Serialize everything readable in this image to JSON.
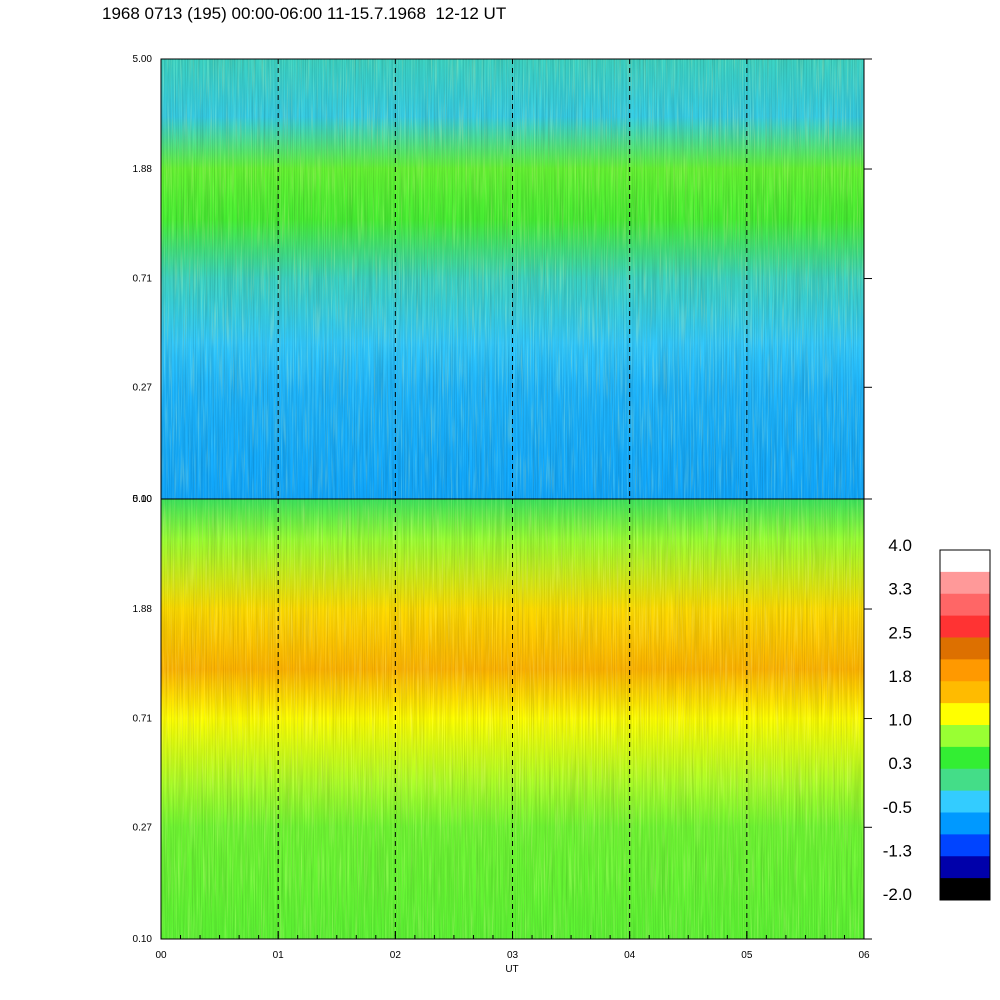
{
  "title": "1968 0713 (195) 00:00-06:00 11-15.7.1968  12-12 UT",
  "chart_data": [
    {
      "type": "heatmap",
      "panel": "upper",
      "x_ticks": [
        "00",
        "01",
        "02",
        "03",
        "04",
        "05",
        "06"
      ],
      "x_range": [
        0,
        6
      ],
      "y_ticks": [
        "0.10",
        "0.27",
        "0.71",
        "1.88",
        "5.00"
      ],
      "y_range": [
        0.1,
        5.0
      ],
      "y_scale": "log",
      "dashed_hour_lines": [
        1,
        2,
        3,
        4,
        5
      ],
      "colormap_level_profile": [
        {
          "y": 5.0,
          "level": 4.5
        },
        {
          "y": 3.0,
          "level": 4.2
        },
        {
          "y": 1.88,
          "level": 6.5
        },
        {
          "y": 1.2,
          "level": 6.2
        },
        {
          "y": 0.71,
          "level": 4.5
        },
        {
          "y": 0.4,
          "level": 4.0
        },
        {
          "y": 0.27,
          "level": 3.6
        },
        {
          "y": 0.1,
          "level": 3.3
        }
      ]
    },
    {
      "type": "heatmap",
      "panel": "lower",
      "x_ticks": [
        "00",
        "01",
        "02",
        "03",
        "04",
        "05",
        "06"
      ],
      "x_range": [
        0,
        6
      ],
      "xlabel": "UT",
      "y_ticks": [
        "0.10",
        "0.27",
        "0.71",
        "1.88",
        "5.00"
      ],
      "y_range": [
        0.1,
        5.0
      ],
      "y_scale": "log",
      "dashed_hour_lines": [
        1,
        2,
        3,
        4,
        5
      ],
      "colormap_level_profile": [
        {
          "y": 5.0,
          "level": 5.5
        },
        {
          "y": 3.5,
          "level": 7.0
        },
        {
          "y": 1.88,
          "level": 8.5
        },
        {
          "y": 1.1,
          "level": 9.2
        },
        {
          "y": 0.71,
          "level": 8.0
        },
        {
          "y": 0.4,
          "level": 7.2
        },
        {
          "y": 0.27,
          "level": 6.6
        },
        {
          "y": 0.1,
          "level": 6.4
        }
      ]
    }
  ],
  "colorbar": {
    "labels": [
      "4.0",
      "3.3",
      "2.5",
      "1.8",
      "1.0",
      "0.3",
      "-0.5",
      "-1.3",
      "-2.0"
    ],
    "colors_top_to_bottom": [
      "#ffffff",
      "#ff9999",
      "#ff6666",
      "#ff3333",
      "#dd7000",
      "#ff9900",
      "#ffbb00",
      "#ffff00",
      "#99ff33",
      "#33ee33",
      "#44dd88",
      "#33ccff",
      "#0099ff",
      "#0044ff",
      "#0000aa",
      "#000000"
    ]
  }
}
